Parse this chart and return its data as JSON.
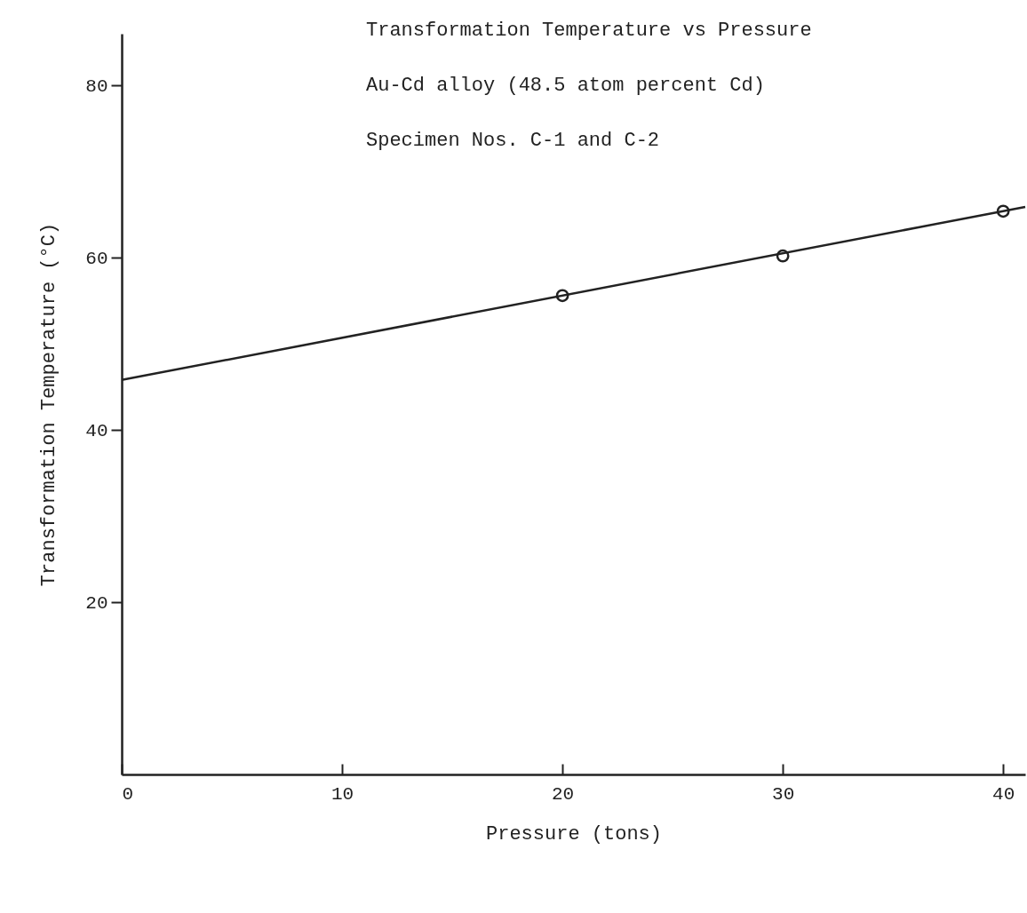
{
  "chart_data": {
    "type": "scatter",
    "title": "Transformation Temperature vs Pressure",
    "subtitle": "Au-Cd alloy (48.5 atom percent Cd)",
    "annotations": [
      "Specimen Nos. C-1 and C-2"
    ],
    "xlabel": "Pressure (tons)",
    "ylabel": "Transformation Temperature (°C)",
    "xlim": [
      0,
      41
    ],
    "ylim": [
      0,
      86
    ],
    "xticks": [
      0,
      10,
      20,
      30,
      40
    ],
    "yticks": [
      20,
      40,
      60,
      80
    ],
    "grid": false,
    "marker": "circle",
    "series": [
      {
        "color": "#222222",
        "x": [
          20,
          30,
          40
        ],
        "values": [
          55.6,
          60.2,
          65.4
        ]
      },
      {
        "type": "line",
        "color": "#222222",
        "marker": "none",
        "x": [
          0,
          41
        ],
        "values": [
          45.8,
          65.9
        ]
      }
    ]
  }
}
